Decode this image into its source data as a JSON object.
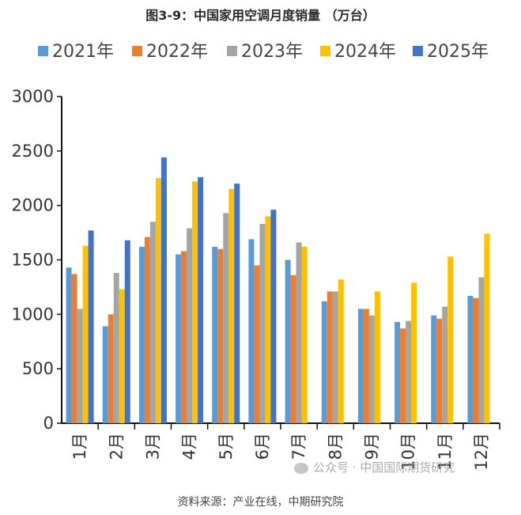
{
  "title": "图3-9：中国家用空调月度销量 （万台）",
  "source": "资料来源：产业在线，中期研究院",
  "watermark": "公众号 · 中国国际期货研究",
  "colors": {
    "2021年": "#5B9BD5",
    "2022年": "#ED7D31",
    "2023年": "#A5A5A5",
    "2024年": "#FFC000",
    "2025年": "#4472C4"
  },
  "chart_data": {
    "type": "bar",
    "title": "图3-9：中国家用空调月度销量 （万台）",
    "xlabel": "",
    "ylabel": "",
    "ylim": [
      0,
      3000
    ],
    "yticks": [
      0,
      500,
      1000,
      1500,
      2000,
      2500,
      3000
    ],
    "legend": "top",
    "grid": false,
    "categories": [
      "1月",
      "2月",
      "3月",
      "4月",
      "5月",
      "6月",
      "7月",
      "8月",
      "9月",
      "10月",
      "11月",
      "12月"
    ],
    "series": [
      {
        "name": "2021年",
        "values": [
          1430,
          890,
          1620,
          1550,
          1620,
          1690,
          1500,
          1120,
          1050,
          930,
          990,
          1170
        ]
      },
      {
        "name": "2022年",
        "values": [
          1370,
          1000,
          1710,
          1580,
          1600,
          1450,
          1360,
          1210,
          1050,
          870,
          960,
          1150
        ]
      },
      {
        "name": "2023年",
        "values": [
          1050,
          1380,
          1850,
          1790,
          1930,
          1830,
          1660,
          1210,
          990,
          940,
          1070,
          1340
        ]
      },
      {
        "name": "2024年",
        "values": [
          1630,
          1230,
          2250,
          2220,
          2150,
          1900,
          1620,
          1320,
          1210,
          1290,
          1530,
          1740
        ]
      },
      {
        "name": "2025年",
        "values": [
          1770,
          1680,
          2440,
          2260,
          2200,
          1960,
          null,
          null,
          null,
          null,
          null,
          null
        ]
      }
    ]
  }
}
